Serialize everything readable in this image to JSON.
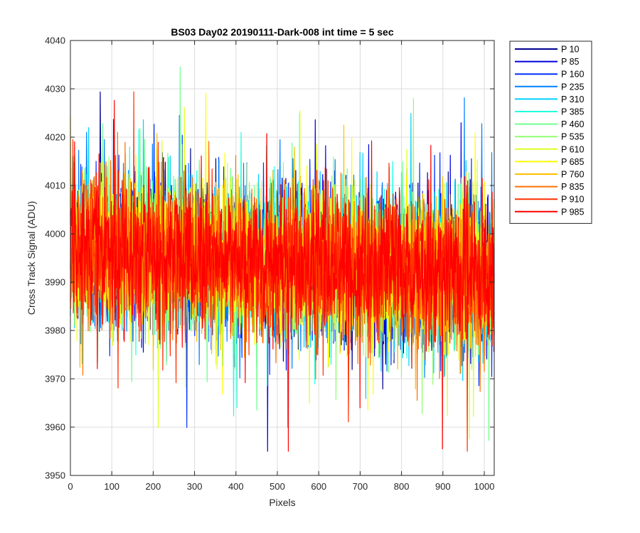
{
  "chart_data": {
    "type": "line",
    "title": "BS03 Day02 20190111-Dark-008 int time = 5 sec",
    "xlabel": "Pixels",
    "ylabel": "Cross Track Signal (ADU)",
    "xlim": [
      0,
      1024
    ],
    "ylim": [
      3950,
      4040
    ],
    "xticks": [
      0,
      100,
      200,
      300,
      400,
      500,
      600,
      700,
      800,
      900,
      1000
    ],
    "yticks": [
      3950,
      3960,
      3970,
      3980,
      3990,
      4000,
      4010,
      4020,
      4030,
      4040
    ],
    "grid": true,
    "legend_position": "outside-top-right",
    "n_points": 1024,
    "series": [
      {
        "name": "P 10",
        "color": "#00008f",
        "mean": 3997,
        "amplitude": 12,
        "trend": -6
      },
      {
        "name": "P 85",
        "color": "#0000df",
        "mean": 3997,
        "amplitude": 12,
        "trend": -6
      },
      {
        "name": "P 160",
        "color": "#0030ff",
        "mean": 3997,
        "amplitude": 12,
        "trend": -6
      },
      {
        "name": "P 235",
        "color": "#0080ff",
        "mean": 3997,
        "amplitude": 12,
        "trend": -6
      },
      {
        "name": "P 310",
        "color": "#00d0ff",
        "mean": 3997,
        "amplitude": 12,
        "trend": -6
      },
      {
        "name": "P 385",
        "color": "#20ffdf",
        "mean": 3997,
        "amplitude": 12,
        "trend": -6
      },
      {
        "name": "P 460",
        "color": "#70ff8f",
        "mean": 3997,
        "amplitude": 12,
        "trend": -6
      },
      {
        "name": "P 535",
        "color": "#8fff70",
        "mean": 3997,
        "amplitude": 12,
        "trend": -6
      },
      {
        "name": "P 610",
        "color": "#dfff20",
        "mean": 3997,
        "amplitude": 12,
        "trend": -6
      },
      {
        "name": "P 685",
        "color": "#ffff00",
        "mean": 3997,
        "amplitude": 12,
        "trend": -6
      },
      {
        "name": "P 760",
        "color": "#ffbf00",
        "mean": 3997,
        "amplitude": 12,
        "trend": -6
      },
      {
        "name": "P 835",
        "color": "#ff7000",
        "mean": 3997,
        "amplitude": 12,
        "trend": -6
      },
      {
        "name": "P 910",
        "color": "#ff3000",
        "mean": 3997,
        "amplitude": 12,
        "trend": -6
      },
      {
        "name": "P 985",
        "color": "#ff0000",
        "mean": 3997,
        "amplitude": 12,
        "trend": -6
      }
    ]
  }
}
